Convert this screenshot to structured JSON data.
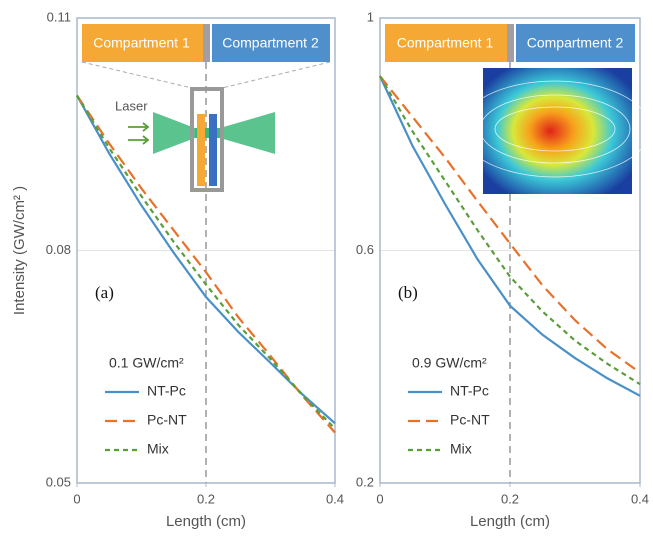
{
  "chart_data": [
    {
      "type": "line",
      "panel_label": "(a)",
      "legend_title": "0.1 GW/cm²",
      "ylabel": "Intensity (GW/cm² )",
      "xlabel": "Length (cm)",
      "compartments": [
        "Compartment 1",
        "Compartment 2"
      ],
      "inset_label": "Laser",
      "boundary_x": 0.2,
      "x": [
        0,
        0.05,
        0.1,
        0.15,
        0.2,
        0.25,
        0.3,
        0.35,
        0.4
      ],
      "series": [
        {
          "name": "NT-Pc",
          "color": "#4a90c8",
          "values": [
            0.1,
            0.0925,
            0.0858,
            0.0797,
            0.074,
            0.0695,
            0.0655,
            0.0614,
            0.0577
          ]
        },
        {
          "name": "Pc-NT",
          "color": "#e8712a",
          "values": [
            0.1,
            0.0938,
            0.088,
            0.0826,
            0.0772,
            0.0714,
            0.0664,
            0.0612,
            0.0565
          ]
        },
        {
          "name": "Mix",
          "color": "#5a9e3a",
          "values": [
            0.1,
            0.0932,
            0.087,
            0.0811,
            0.0756,
            0.0704,
            0.066,
            0.0613,
            0.057
          ]
        }
      ],
      "xlim": [
        0,
        0.4
      ],
      "ylim": [
        0.05,
        0.11
      ],
      "xticks": [
        0,
        0.2,
        0.4
      ],
      "yticks": [
        0.05,
        0.08,
        0.11
      ],
      "grid": true
    },
    {
      "type": "line",
      "panel_label": "(b)",
      "legend_title": "0.9 GW/cm²",
      "xlabel": "Length (cm)",
      "compartments": [
        "Compartment 1",
        "Compartment 2"
      ],
      "boundary_x": 0.2,
      "x": [
        0,
        0.05,
        0.1,
        0.15,
        0.2,
        0.25,
        0.3,
        0.35,
        0.4
      ],
      "series": [
        {
          "name": "NT-Pc",
          "color": "#4a90c8",
          "values": [
            0.9,
            0.78,
            0.68,
            0.585,
            0.505,
            0.455,
            0.415,
            0.38,
            0.35
          ]
        },
        {
          "name": "Pc-NT",
          "color": "#e8712a",
          "values": [
            0.9,
            0.83,
            0.76,
            0.685,
            0.612,
            0.54,
            0.48,
            0.43,
            0.39
          ]
        },
        {
          "name": "Mix",
          "color": "#5a9e3a",
          "values": [
            0.9,
            0.805,
            0.72,
            0.635,
            0.555,
            0.495,
            0.445,
            0.405,
            0.37
          ]
        }
      ],
      "xlim": [
        0,
        0.4
      ],
      "ylim": [
        0.2,
        1
      ],
      "xticks": [
        0,
        0.2,
        0.4
      ],
      "yticks": [
        0.2,
        0.6,
        1
      ],
      "grid": true
    }
  ]
}
